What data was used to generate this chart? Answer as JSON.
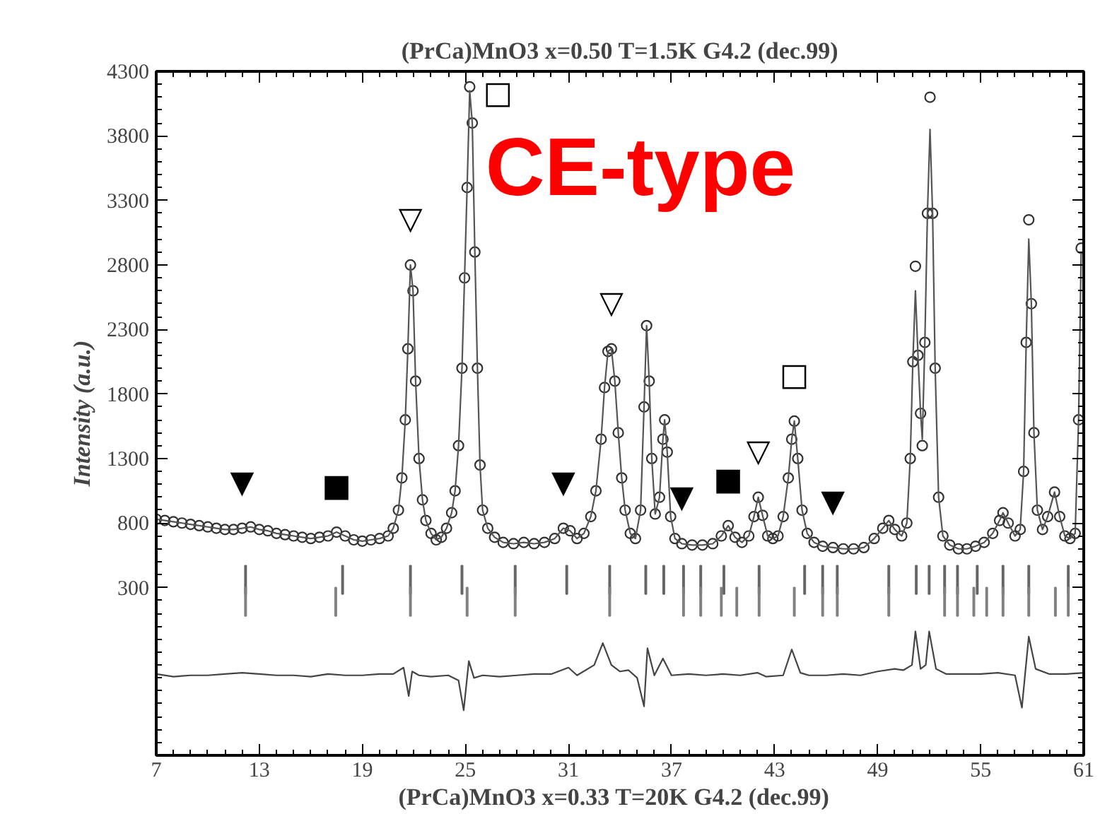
{
  "chart_data": {
    "type": "scatter",
    "title": "(PrCa)MnO3 x=0.50 T=1.5K G4.2 (dec.99)",
    "xlabel": "(PrCa)MnO3 x=0.33   T=20K G4.2 (dec.99)",
    "ylabel": "Intensity (a.u.)",
    "xlim": [
      7,
      61
    ],
    "xticks": [
      7,
      13,
      19,
      25,
      31,
      37,
      43,
      49,
      55,
      61
    ],
    "ylim": [
      -1000,
      4300
    ],
    "yticks": [
      300,
      800,
      1300,
      1800,
      2300,
      2800,
      3300,
      3800,
      4300
    ],
    "grid": false,
    "x": [
      7,
      7.5,
      8,
      8.5,
      9,
      9.5,
      10,
      10.5,
      11,
      11.5,
      12,
      12.5,
      13,
      13.5,
      14,
      14.5,
      15,
      15.5,
      16,
      16.5,
      17,
      17.5,
      18,
      18.5,
      19,
      19.5,
      20,
      20.5,
      20.8,
      21.1,
      21.3,
      21.5,
      21.65,
      21.8,
      21.95,
      22.1,
      22.3,
      22.5,
      22.7,
      23,
      23.3,
      23.6,
      23.9,
      24.2,
      24.4,
      24.6,
      24.8,
      24.95,
      25.1,
      25.25,
      25.4,
      25.55,
      25.7,
      25.85,
      26,
      26.3,
      26.7,
      27.2,
      27.8,
      28.4,
      29,
      29.6,
      30.2,
      30.7,
      31.1,
      31.5,
      31.9,
      32.3,
      32.6,
      32.9,
      33.1,
      33.3,
      33.5,
      33.7,
      33.9,
      34.1,
      34.3,
      34.6,
      34.9,
      35.2,
      35.4,
      35.55,
      35.7,
      35.85,
      36.05,
      36.3,
      36.5,
      36.6,
      36.75,
      36.95,
      37.2,
      37.6,
      38.2,
      38.8,
      39.4,
      39.9,
      40.3,
      40.7,
      41.1,
      41.5,
      41.8,
      42.05,
      42.3,
      42.6,
      42.9,
      43.2,
      43.5,
      43.8,
      44.0,
      44.15,
      44.35,
      44.6,
      44.9,
      45.3,
      45.8,
      46.4,
      47,
      47.6,
      48.2,
      48.8,
      49.3,
      49.65,
      50,
      50.4,
      50.7,
      50.9,
      51.05,
      51.2,
      51.35,
      51.5,
      51.6,
      51.75,
      51.9,
      52.05,
      52.2,
      52.35,
      52.55,
      52.8,
      53.2,
      53.7,
      54.2,
      54.7,
      55.2,
      55.7,
      56.1,
      56.3,
      56.6,
      57,
      57.3,
      57.5,
      57.65,
      57.8,
      57.95,
      58.1,
      58.3,
      58.6,
      58.9,
      59.3,
      59.6,
      59.9,
      60.2,
      60.5,
      60.7,
      60.85
    ],
    "series": [
      {
        "marker": "circle",
        "color": "#333333",
        "values": [
          830,
          820,
          810,
          800,
          790,
          780,
          770,
          760,
          750,
          750,
          760,
          770,
          750,
          740,
          720,
          710,
          700,
          690,
          680,
          690,
          700,
          730,
          700,
          670,
          660,
          670,
          680,
          700,
          760,
          900,
          1150,
          1600,
          2150,
          2800,
          2600,
          1900,
          1300,
          980,
          820,
          720,
          670,
          690,
          760,
          880,
          1050,
          1400,
          2000,
          2700,
          3400,
          4180,
          3900,
          2900,
          2000,
          1250,
          900,
          760,
          690,
          650,
          640,
          650,
          640,
          650,
          680,
          760,
          740,
          680,
          720,
          850,
          1050,
          1450,
          1850,
          2130,
          2150,
          1900,
          1500,
          1150,
          900,
          720,
          680,
          900,
          1700,
          2330,
          1900,
          1300,
          870,
          1000,
          1450,
          1600,
          1350,
          850,
          680,
          640,
          630,
          630,
          640,
          700,
          780,
          690,
          650,
          700,
          850,
          1000,
          860,
          700,
          680,
          700,
          850,
          1150,
          1450,
          1590,
          1300,
          900,
          720,
          650,
          620,
          610,
          600,
          600,
          610,
          680,
          760,
          820,
          750,
          700,
          800,
          1300,
          2050,
          2790,
          2100,
          1650,
          1400,
          2200,
          3200,
          4100,
          3200,
          2000,
          1000,
          700,
          630,
          600,
          600,
          620,
          650,
          720,
          820,
          880,
          800,
          700,
          750,
          1200,
          2200,
          3150,
          2500,
          1500,
          900,
          750,
          850,
          1040,
          850,
          700,
          680,
          720,
          1600,
          2930
        ]
      },
      {
        "type": "line",
        "color": "#555555",
        "values": [
          830,
          820,
          810,
          800,
          790,
          780,
          770,
          760,
          750,
          750,
          760,
          770,
          750,
          740,
          720,
          710,
          700,
          690,
          680,
          690,
          700,
          730,
          700,
          670,
          660,
          670,
          680,
          700,
          760,
          900,
          1150,
          1600,
          2150,
          2800,
          2600,
          1900,
          1300,
          980,
          820,
          720,
          670,
          690,
          760,
          880,
          1050,
          1400,
          2000,
          2700,
          3400,
          4150,
          3900,
          2900,
          2000,
          1250,
          900,
          760,
          690,
          650,
          640,
          650,
          640,
          650,
          680,
          760,
          740,
          680,
          720,
          850,
          1050,
          1450,
          1850,
          2130,
          2150,
          1900,
          1500,
          1150,
          900,
          720,
          680,
          900,
          1700,
          2330,
          1900,
          1300,
          870,
          1000,
          1450,
          1600,
          1350,
          850,
          680,
          640,
          630,
          630,
          640,
          700,
          780,
          690,
          650,
          700,
          850,
          1000,
          860,
          700,
          680,
          700,
          850,
          1150,
          1450,
          1590,
          1300,
          900,
          720,
          650,
          620,
          610,
          600,
          600,
          610,
          680,
          760,
          820,
          750,
          700,
          800,
          1300,
          2050,
          2600,
          2100,
          1650,
          1450,
          2200,
          3200,
          3850,
          3200,
          2000,
          1000,
          700,
          630,
          600,
          600,
          620,
          650,
          720,
          820,
          880,
          800,
          700,
          750,
          1200,
          2200,
          3000,
          2500,
          1500,
          900,
          750,
          850,
          1040,
          850,
          700,
          680,
          720,
          1600,
          2900
        ]
      },
      {
        "type": "bar",
        "color": "#666666",
        "x": [
          12.2,
          17.85,
          21.8,
          24.8,
          27.9,
          30.9,
          33.4,
          35.5,
          36.55,
          37.7,
          38.7,
          40.05,
          42.1,
          44.75,
          45.8,
          46.65,
          49.65,
          51.25,
          52.0,
          52.9,
          53.65,
          54.8,
          56.3,
          57.8,
          60.1
        ],
        "base": [
          250,
          250,
          250,
          250,
          250,
          250,
          250,
          250,
          250,
          250,
          250,
          250,
          250,
          250,
          250,
          250,
          250,
          250,
          250,
          250,
          250,
          250,
          250,
          250,
          250
        ],
        "values": [
          220,
          220,
          220,
          220,
          220,
          220,
          220,
          220,
          220,
          220,
          220,
          220,
          220,
          220,
          220,
          220,
          220,
          220,
          220,
          220,
          220,
          220,
          220,
          220,
          220
        ]
      },
      {
        "type": "bar",
        "color": "#808080",
        "x": [
          12.2,
          17.45,
          21.8,
          25.1,
          27.9,
          33.4,
          37.7,
          38.7,
          39.9,
          40.8,
          42.1,
          44.15,
          45.8,
          46.65,
          49.65,
          52.9,
          53.65,
          54.6,
          55.35,
          56.3,
          57.8,
          59.35,
          60.1
        ],
        "base": [
          80,
          80,
          80,
          80,
          80,
          80,
          80,
          80,
          80,
          80,
          80,
          80,
          80,
          80,
          80,
          80,
          80,
          80,
          80,
          80,
          80,
          80,
          80
        ],
        "values": [
          220,
          220,
          220,
          220,
          220,
          220,
          220,
          220,
          220,
          220,
          220,
          220,
          220,
          220,
          220,
          220,
          220,
          220,
          220,
          220,
          220,
          220,
          220
        ]
      },
      {
        "type": "line",
        "color": "#444444",
        "x": [
          7,
          8,
          9,
          10,
          11,
          12,
          13,
          14,
          15,
          16,
          17,
          18,
          19,
          20,
          20.8,
          21.4,
          21.7,
          21.9,
          22.3,
          23,
          24,
          24.6,
          24.9,
          25.2,
          25.5,
          26,
          27,
          28,
          29,
          30,
          31,
          31.5,
          32.5,
          33,
          33.5,
          34,
          34.5,
          35,
          35.4,
          35.6,
          36,
          36.5,
          37,
          38,
          39,
          40,
          41,
          42,
          42.5,
          43.5,
          44,
          44.5,
          45,
          46,
          47,
          48,
          49,
          50,
          50.5,
          51,
          51.2,
          51.5,
          51.8,
          52,
          52.4,
          53,
          54,
          55,
          56,
          57,
          57.4,
          57.6,
          57.8,
          58.2,
          59,
          60,
          61
        ],
        "values": [
          -370,
          -390,
          -380,
          -380,
          -370,
          -360,
          -370,
          -380,
          -380,
          -390,
          -370,
          -380,
          -380,
          -370,
          -370,
          -320,
          -540,
          -350,
          -380,
          -390,
          -380,
          -420,
          -650,
          -270,
          -400,
          -380,
          -390,
          -380,
          -370,
          -370,
          -320,
          -380,
          -300,
          -130,
          -300,
          -350,
          -340,
          -400,
          -620,
          -170,
          -380,
          -250,
          -380,
          -370,
          -380,
          -370,
          -380,
          -360,
          -390,
          -380,
          -180,
          -360,
          -380,
          -380,
          -370,
          -380,
          -350,
          -330,
          -340,
          -300,
          -40,
          -330,
          -300,
          -40,
          -330,
          -370,
          -370,
          -370,
          -360,
          -380,
          -630,
          -350,
          -80,
          -330,
          -370,
          -370,
          -360
        ]
      }
    ],
    "annotations": [
      "CE-type",
      {
        "text": "▼",
        "x": 12,
        "y": 760
      },
      {
        "text": "■",
        "x": 17.5,
        "y": 730
      },
      {
        "text": "▽",
        "x": 21.8,
        "y": 2800
      },
      {
        "text": "□",
        "x": 25.25,
        "y": 4180
      },
      {
        "text": "▼",
        "x": 30.7,
        "y": 760
      },
      {
        "text": "▽",
        "x": 33.5,
        "y": 2150
      },
      {
        "text": "▼",
        "x": 37.6,
        "y": 640
      },
      {
        "text": "■",
        "x": 40.3,
        "y": 780
      },
      {
        "text": "▽",
        "x": 42.05,
        "y": 1000
      },
      {
        "text": "□",
        "x": 44.15,
        "y": 1590
      },
      {
        "text": "▼",
        "x": 46.4,
        "y": 610
      }
    ]
  }
}
